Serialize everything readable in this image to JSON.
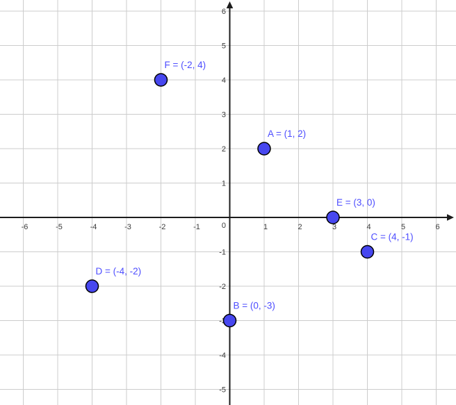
{
  "chart_data": {
    "type": "scatter",
    "title": "",
    "xlabel": "",
    "ylabel": "",
    "grid": true,
    "xlim": [
      -6.7,
      6.6
    ],
    "ylim": [
      -5.5,
      6.3
    ],
    "x_ticks": [
      -6,
      -5,
      -4,
      -3,
      -2,
      -1,
      1,
      2,
      3,
      4,
      5,
      6
    ],
    "y_ticks": [
      -5,
      -4,
      -3,
      -2,
      -1,
      1,
      2,
      3,
      4,
      5,
      6
    ],
    "origin_label": "0",
    "points": [
      {
        "name": "A",
        "x": 1,
        "y": 2,
        "label": "A = (1, 2)"
      },
      {
        "name": "B",
        "x": 0,
        "y": -3,
        "label": "B = (0, -3)"
      },
      {
        "name": "C",
        "x": 4,
        "y": -1,
        "label": "C = (4, -1)"
      },
      {
        "name": "D",
        "x": -4,
        "y": -2,
        "label": "D = (-4, -2)"
      },
      {
        "name": "E",
        "x": 3,
        "y": 0,
        "label": "E = (3, 0)"
      },
      {
        "name": "F",
        "x": -2,
        "y": 4,
        "label": "F = (-2, 4)"
      }
    ],
    "colors": {
      "background": "#ffffff",
      "grid": "#cccccc",
      "axis": "#1c1c1c",
      "tick_label": "#3a3a3a",
      "point_fill": "#4747ef",
      "point_stroke": "#000000",
      "point_label": "#4d4dff"
    }
  }
}
